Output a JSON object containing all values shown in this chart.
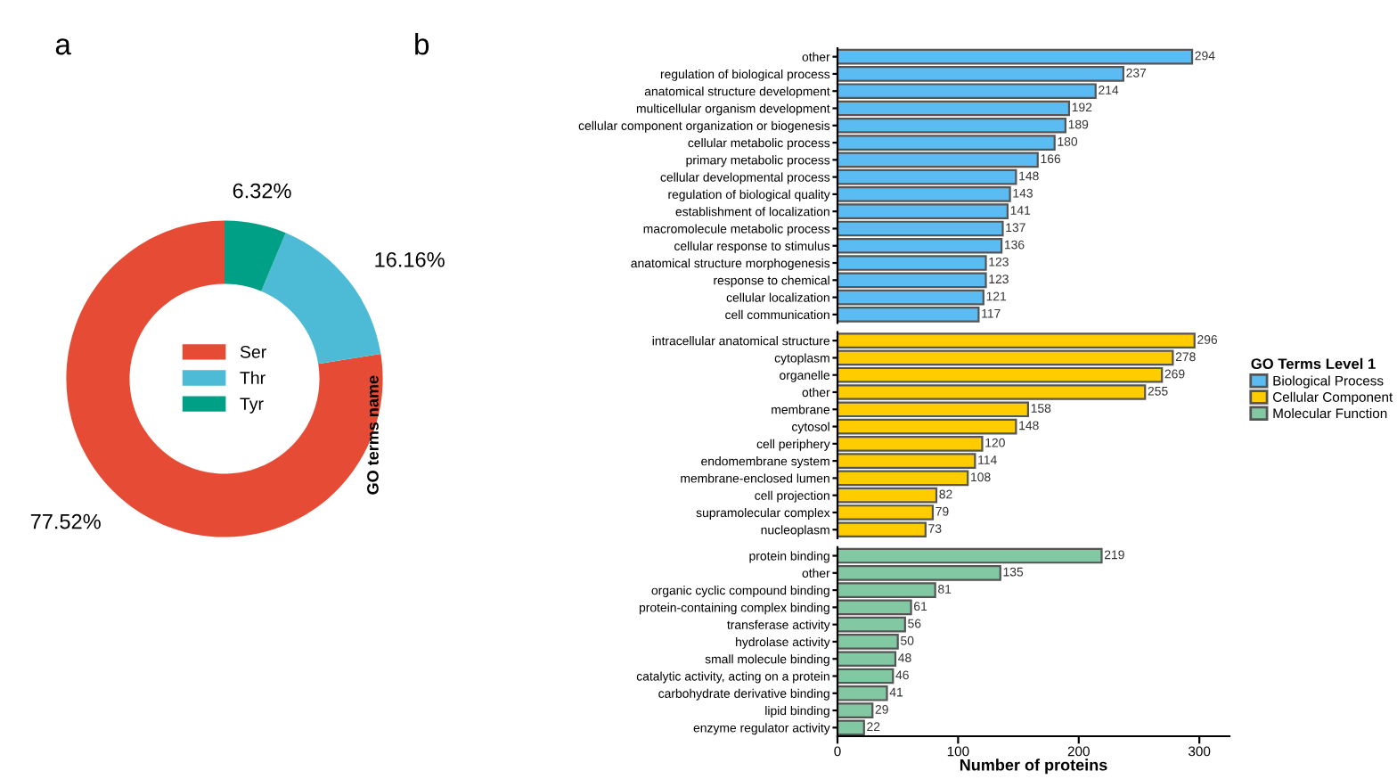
{
  "chart_data": [
    {
      "type": "donut",
      "title": "a",
      "categories": [
        "Ser",
        "Thr",
        "Tyr"
      ],
      "values": [
        77.52,
        16.16,
        6.32
      ],
      "colors": [
        "#e64b35",
        "#4dbbd5",
        "#00a087"
      ],
      "value_labels": [
        "77.52%",
        "16.16%",
        "6.32%"
      ],
      "legend": "center"
    },
    {
      "type": "bar",
      "orientation": "horizontal",
      "title": "b",
      "categories": [
        "other",
        "regulation of biological process",
        "anatomical structure development",
        "multicellular organism development",
        "cellular component organization or biogenesis",
        "cellular metabolic process",
        "primary metabolic process",
        "cellular developmental process",
        "regulation of biological quality",
        "establishment of localization",
        "macromolecule metabolic process",
        "cellular response to stimulus",
        "anatomical structure morphogenesis",
        "response to chemical",
        "cellular localization",
        "cell communication"
      ],
      "series": [
        {
          "name": "Biological Process",
          "color": "#5bbcf3",
          "values": [
            294,
            237,
            214,
            192,
            189,
            180,
            166,
            148,
            143,
            141,
            137,
            136,
            123,
            123,
            121,
            117
          ]
        }
      ],
      "data_labels": true,
      "tick_labels": "y",
      "legend": "right",
      "legend_title": "GO Terms Level 1"
    },
    {
      "type": "bar",
      "orientation": "horizontal",
      "ylabel": "GO terms name",
      "categories": [
        "intracellular anatomical structure",
        "cytoplasm",
        "organelle",
        "other",
        "membrane",
        "cytosol",
        "cell periphery",
        "endomembrane system",
        "membrane-enclosed lumen",
        "cell projection",
        "supramolecular complex",
        "nucleoplasm"
      ],
      "series": [
        {
          "name": "Cellular Component",
          "color": "#ffcc00",
          "values": [
            296,
            278,
            269,
            255,
            158,
            148,
            120,
            114,
            108,
            82,
            79,
            73
          ]
        }
      ],
      "data_labels": true,
      "tick_labels": "y",
      "legend": "right"
    },
    {
      "type": "bar",
      "orientation": "horizontal",
      "xlabel": "Number of proteins",
      "categories": [
        "protein binding",
        "other",
        "organic cyclic compound binding",
        "protein-containing complex binding",
        "transferase activity",
        "hydrolase activity",
        "small molecule binding",
        "catalytic activity, acting on a protein",
        "carbohydrate derivative binding",
        "lipid binding",
        "enzyme regulator activity"
      ],
      "series": [
        {
          "name": "Molecular Function",
          "color": "#82c9a3",
          "values": [
            219,
            135,
            81,
            61,
            56,
            50,
            48,
            46,
            41,
            29,
            22
          ]
        }
      ],
      "xlim": [
        0,
        325
      ],
      "xticks": [
        0,
        100,
        200,
        300
      ],
      "data_labels": true,
      "legend": "right"
    }
  ]
}
